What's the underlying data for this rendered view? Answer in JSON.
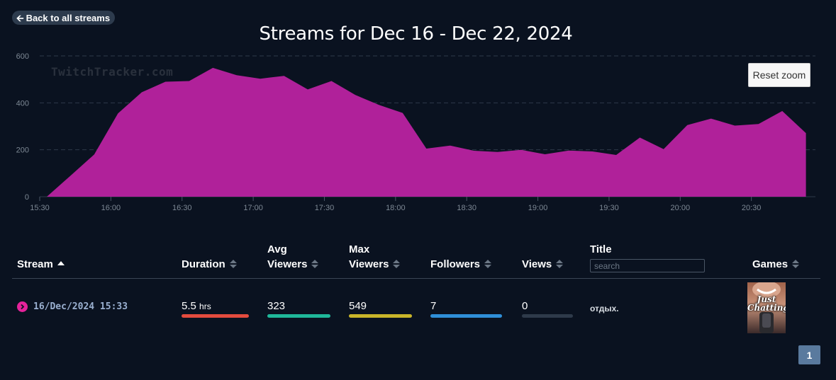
{
  "nav": {
    "back_label": "Back to all streams"
  },
  "chart_title": "Streams for Dec 16 - Dec 22, 2024",
  "watermark": "TwitchTracker.com",
  "reset_zoom_label": "Reset zoom",
  "colors": {
    "area": "#b0219a",
    "background": "#0a1220",
    "grid": "#2e3a4a"
  },
  "chart_data": {
    "type": "area",
    "x": [
      "15:33",
      "15:43",
      "15:53",
      "16:03",
      "16:13",
      "16:23",
      "16:33",
      "16:43",
      "16:53",
      "17:03",
      "17:13",
      "17:23",
      "17:33",
      "17:43",
      "17:53",
      "18:03",
      "18:13",
      "18:23",
      "18:33",
      "18:43",
      "18:53",
      "19:03",
      "19:13",
      "19:23",
      "19:33",
      "19:43",
      "19:53",
      "20:03",
      "20:13",
      "20:23",
      "20:33",
      "20:43",
      "20:53"
    ],
    "series": [
      {
        "values": [
          0,
          90,
          180,
          355,
          445,
          490,
          493,
          549,
          518,
          503,
          515,
          457,
          493,
          434,
          391,
          357,
          205,
          218,
          196,
          191,
          200,
          181,
          197,
          193,
          178,
          252,
          203,
          305,
          333,
          303,
          310,
          365,
          271
        ]
      }
    ],
    "x_ticks": [
      "15:30",
      "16:00",
      "16:30",
      "17:00",
      "17:30",
      "18:00",
      "18:30",
      "19:00",
      "19:30",
      "20:00",
      "20:30"
    ],
    "y_ticks": [
      "0",
      "200",
      "400",
      "600"
    ],
    "ylim": [
      0,
      600
    ],
    "xlim": [
      "15:30",
      "20:57"
    ],
    "grid": "horizontal dashed"
  },
  "table": {
    "headers": {
      "stream": "Stream",
      "duration": "Duration",
      "avg_viewers_1": "Avg",
      "avg_viewers_2": "Viewers",
      "max_viewers_1": "Max",
      "max_viewers_2": "Viewers",
      "followers": "Followers",
      "views": "Views",
      "title": "Title",
      "games": "Games"
    },
    "search_placeholder": "search",
    "rows": [
      {
        "stream": "16/Dec/2024 15:33",
        "duration_value": "5.5",
        "duration_unit": "hrs",
        "duration_fill": 1.0,
        "avg_viewers": "323",
        "avg_fill": 1.0,
        "max_viewers": "549",
        "max_fill": 1.0,
        "followers": "7",
        "followers_fill": 1.0,
        "views": "0",
        "views_fill": 0.0,
        "title": "отдых.",
        "game": "Just Chatting"
      }
    ],
    "bar_colors": {
      "duration": "#e34b3e",
      "avg": "#1fb89a",
      "max": "#c9b52a",
      "followers": "#2f8fd8",
      "views": "#2e3a4a"
    }
  },
  "pagination": {
    "current": "1"
  }
}
